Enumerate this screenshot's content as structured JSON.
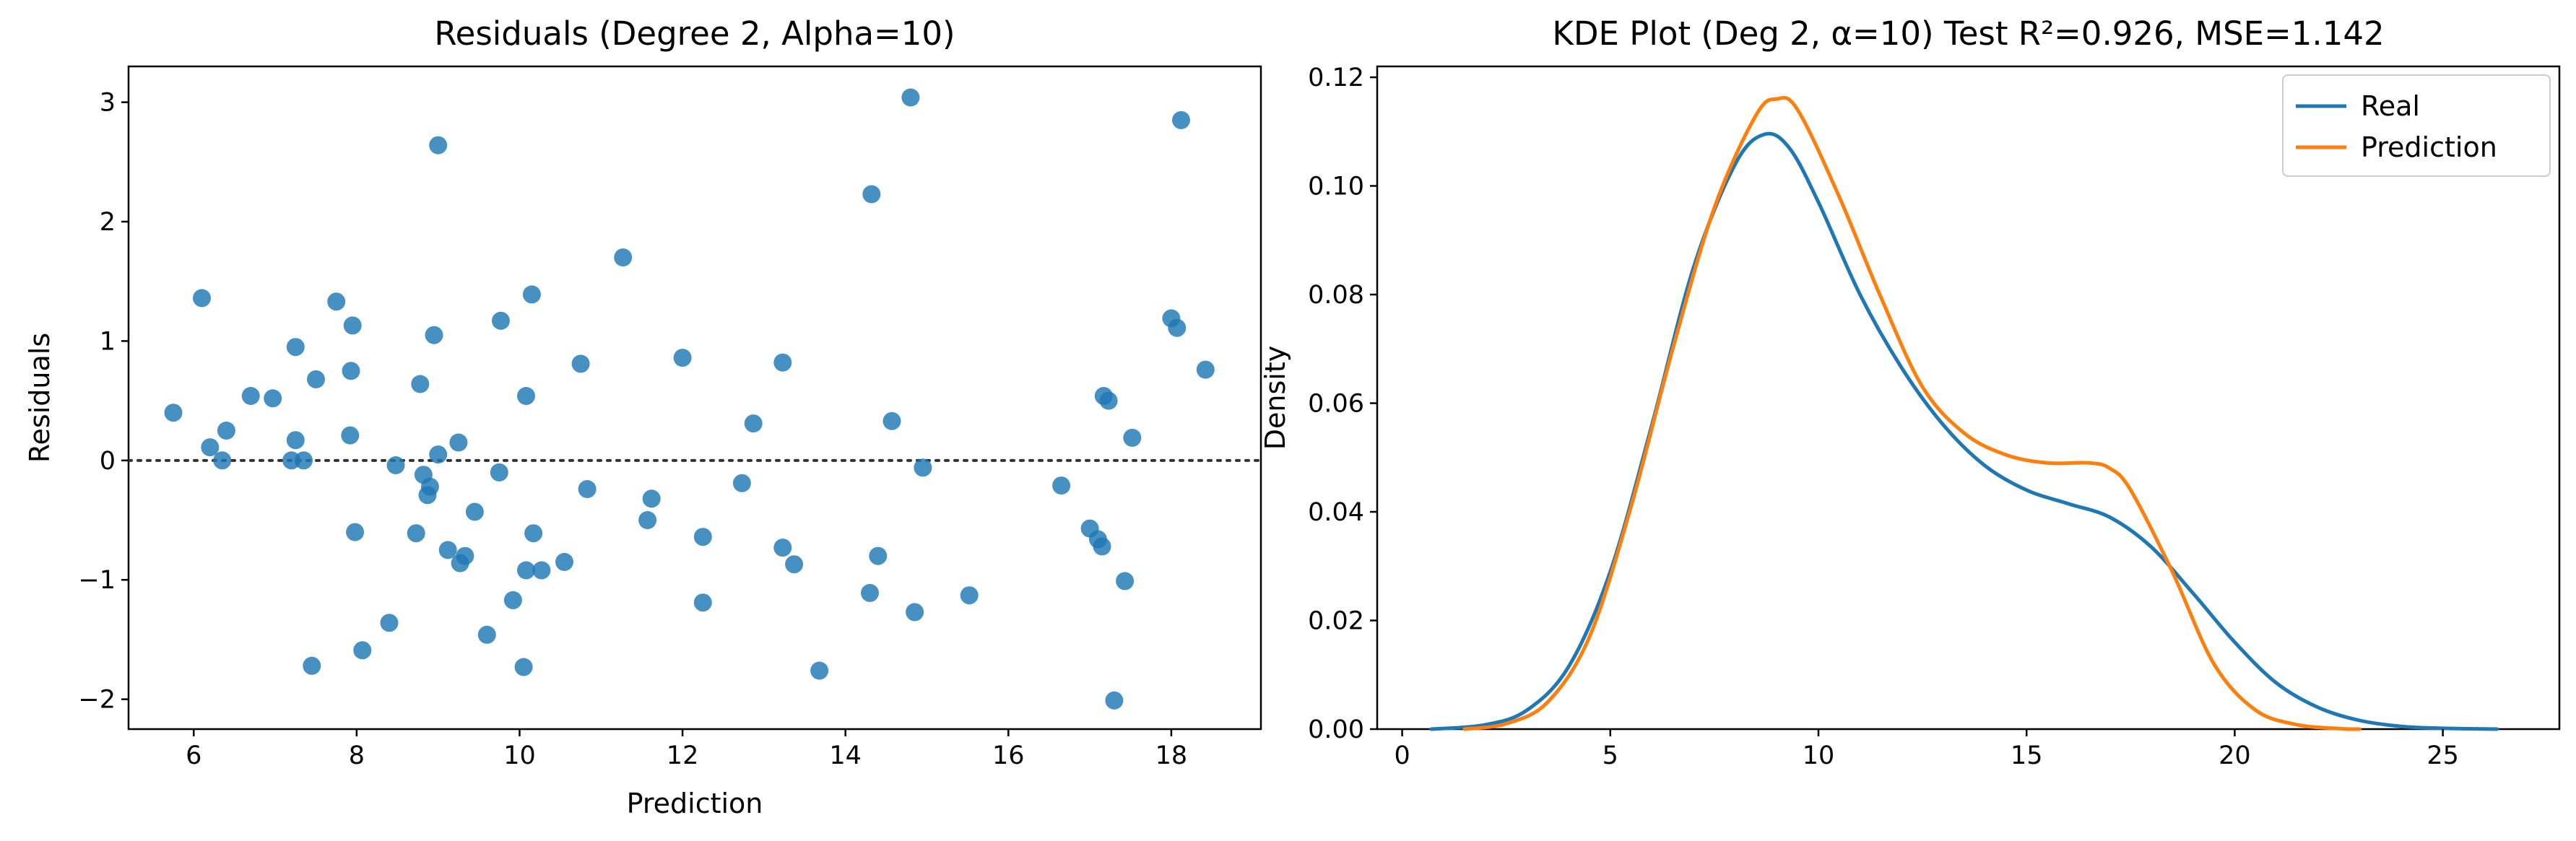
{
  "chart_data": [
    {
      "type": "scatter",
      "title": "Residuals (Degree 2, Alpha=10)",
      "xlabel": "Prediction",
      "ylabel": "Residuals",
      "xlim": [
        5.2,
        19.1
      ],
      "ylim": [
        -2.25,
        3.3
      ],
      "xticks": [
        "6",
        "8",
        "10",
        "12",
        "14",
        "16",
        "18"
      ],
      "xtick_values": [
        6,
        8,
        10,
        12,
        14,
        16,
        18
      ],
      "yticks": [
        "−2",
        "−1",
        "0",
        "1",
        "2",
        "3"
      ],
      "ytick_values": [
        -2,
        -1,
        0,
        1,
        2,
        3
      ],
      "reference_line": 0,
      "point_color": "#1f77b4",
      "points": [
        [
          5.75,
          0.4
        ],
        [
          6.1,
          1.36
        ],
        [
          6.2,
          0.11
        ],
        [
          6.35,
          0.0
        ],
        [
          6.4,
          0.25
        ],
        [
          6.7,
          0.54
        ],
        [
          6.97,
          0.52
        ],
        [
          7.2,
          0.0
        ],
        [
          7.25,
          0.95
        ],
        [
          7.25,
          0.17
        ],
        [
          7.35,
          0.0
        ],
        [
          7.45,
          -1.72
        ],
        [
          7.5,
          0.68
        ],
        [
          7.75,
          1.33
        ],
        [
          7.92,
          0.21
        ],
        [
          7.93,
          0.75
        ],
        [
          7.95,
          1.13
        ],
        [
          7.98,
          -0.6
        ],
        [
          8.07,
          -1.59
        ],
        [
          8.4,
          -1.36
        ],
        [
          8.48,
          -0.04
        ],
        [
          8.73,
          -0.61
        ],
        [
          8.78,
          0.64
        ],
        [
          8.82,
          -0.12
        ],
        [
          8.87,
          -0.29
        ],
        [
          8.9,
          -0.22
        ],
        [
          8.95,
          1.05
        ],
        [
          9.0,
          0.05
        ],
        [
          9.0,
          2.64
        ],
        [
          9.12,
          -0.75
        ],
        [
          9.25,
          0.15
        ],
        [
          9.27,
          -0.86
        ],
        [
          9.33,
          -0.8
        ],
        [
          9.45,
          -0.43
        ],
        [
          9.6,
          -1.46
        ],
        [
          9.75,
          -0.1
        ],
        [
          9.77,
          1.17
        ],
        [
          9.92,
          -1.17
        ],
        [
          10.05,
          -1.73
        ],
        [
          10.08,
          -0.92
        ],
        [
          10.08,
          0.54
        ],
        [
          10.15,
          1.39
        ],
        [
          10.17,
          -0.61
        ],
        [
          10.27,
          -0.92
        ],
        [
          10.55,
          -0.85
        ],
        [
          10.75,
          0.81
        ],
        [
          10.83,
          -0.24
        ],
        [
          11.27,
          1.7
        ],
        [
          11.57,
          -0.5
        ],
        [
          11.62,
          -0.32
        ],
        [
          12.0,
          0.86
        ],
        [
          12.25,
          -0.64
        ],
        [
          12.25,
          -1.19
        ],
        [
          12.73,
          -0.19
        ],
        [
          12.87,
          0.31
        ],
        [
          13.23,
          0.82
        ],
        [
          13.23,
          -0.73
        ],
        [
          13.37,
          -0.87
        ],
        [
          13.68,
          -1.76
        ],
        [
          14.32,
          2.23
        ],
        [
          14.3,
          -1.11
        ],
        [
          14.4,
          -0.8
        ],
        [
          14.57,
          0.33
        ],
        [
          14.8,
          3.04
        ],
        [
          14.85,
          -1.27
        ],
        [
          14.95,
          -0.06
        ],
        [
          15.52,
          -1.13
        ],
        [
          16.65,
          -0.21
        ],
        [
          17.0,
          -0.57
        ],
        [
          17.1,
          -0.66
        ],
        [
          17.15,
          -0.72
        ],
        [
          17.17,
          0.54
        ],
        [
          17.23,
          0.5
        ],
        [
          17.3,
          -2.01
        ],
        [
          17.43,
          -1.01
        ],
        [
          17.52,
          0.19
        ],
        [
          18.0,
          1.19
        ],
        [
          18.07,
          1.11
        ],
        [
          18.12,
          2.85
        ],
        [
          18.42,
          0.76
        ]
      ]
    },
    {
      "type": "line",
      "title": "KDE Plot (Deg 2, α=10) Test R²=0.926, MSE=1.142",
      "xlabel": "",
      "ylabel": "Density",
      "xlim": [
        -0.6,
        27.8
      ],
      "ylim": [
        0,
        0.122
      ],
      "xticks": [
        "0",
        "5",
        "10",
        "15",
        "20",
        "25"
      ],
      "xtick_values": [
        0,
        5,
        10,
        15,
        20,
        25
      ],
      "yticks": [
        "0.00",
        "0.02",
        "0.04",
        "0.06",
        "0.08",
        "0.10",
        "0.12"
      ],
      "ytick_values": [
        0,
        0.02,
        0.04,
        0.06,
        0.08,
        0.1,
        0.12
      ],
      "legend_position": "top-right",
      "series": [
        {
          "name": "Real",
          "color": "#1f77b4",
          "x": [
            0.7,
            2,
            3,
            4,
            5,
            6,
            7,
            8,
            8.7,
            9.3,
            10,
            11,
            12,
            13,
            14,
            15,
            16,
            17,
            18,
            19,
            20,
            21,
            22,
            23,
            24,
            25,
            26.3
          ],
          "y": [
            0.0,
            0.0008,
            0.0035,
            0.0115,
            0.029,
            0.056,
            0.085,
            0.104,
            0.1095,
            0.107,
            0.097,
            0.08,
            0.0665,
            0.056,
            0.0485,
            0.044,
            0.0415,
            0.039,
            0.0335,
            0.025,
            0.016,
            0.0085,
            0.004,
            0.0016,
            0.0005,
            0.00015,
            0.0
          ]
        },
        {
          "name": "Prediction",
          "color": "#ff7f0e",
          "x": [
            1.5,
            2.5,
            3.5,
            4.5,
            5.5,
            6.5,
            7.5,
            8.5,
            9.0,
            9.5,
            10.5,
            11.5,
            12.5,
            13.5,
            14.5,
            15.5,
            16.5,
            17.0,
            17.5,
            18.5,
            19.5,
            20.5,
            21.5,
            22.5,
            23.0
          ],
          "y": [
            0.0,
            0.001,
            0.005,
            0.017,
            0.041,
            0.07,
            0.096,
            0.113,
            0.116,
            0.114,
            0.098,
            0.0795,
            0.063,
            0.0545,
            0.0505,
            0.049,
            0.049,
            0.048,
            0.044,
            0.029,
            0.012,
            0.0035,
            0.0008,
            0.0001,
            0.0
          ]
        }
      ]
    }
  ]
}
